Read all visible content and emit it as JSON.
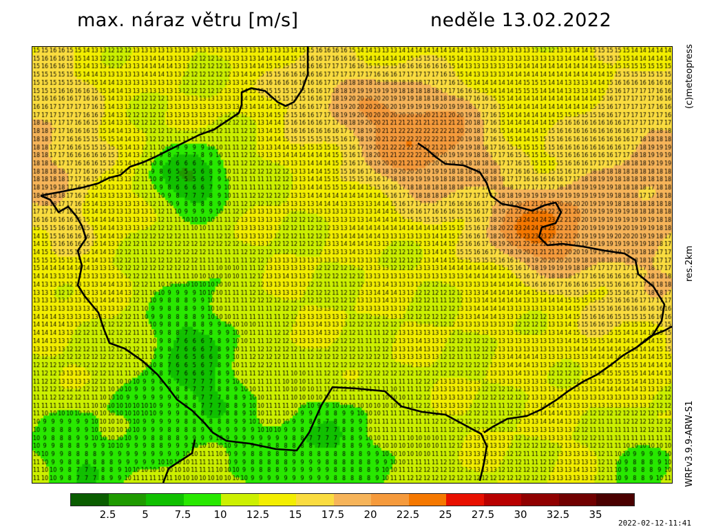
{
  "header": {
    "title_left": "max. náraz větru [m/s]",
    "title_right": "neděle 13.02.2022"
  },
  "side_labels": {
    "copyright": "(c)meteopress",
    "resolution": "res.2km",
    "model": "WRFv3.9.9-ARW-S1"
  },
  "footer": {
    "timestamp": "2022-02-12-11:41"
  },
  "legend": {
    "unit": "m/s",
    "ticks": [
      "2.5",
      "5",
      "7.5",
      "10",
      "12.5",
      "15",
      "17.5",
      "20",
      "22.5",
      "25",
      "27.5",
      "30",
      "32.5",
      "35"
    ],
    "colors": [
      "#0a5d00",
      "#1f9a00",
      "#10c000",
      "#28e800",
      "#ccf000",
      "#f3ee00",
      "#fadc40",
      "#f6b45a",
      "#f59a3c",
      "#f57800",
      "#e81000",
      "#b80000",
      "#900000",
      "#700000",
      "#4a0000"
    ]
  },
  "map": {
    "variable": "max. náraz větru",
    "unit": "m/s",
    "grid_rows": 54,
    "grid_cols": 77,
    "border_color": "#000000",
    "value_text_color": "#000000"
  }
}
